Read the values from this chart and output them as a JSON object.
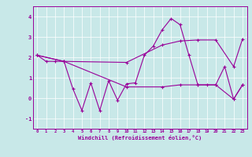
{
  "xlabel": "Windchill (Refroidissement éolien,°C)",
  "bg_color": "#c8e8e8",
  "line_color": "#990099",
  "grid_color": "#ffffff",
  "xlim": [
    -0.5,
    23.5
  ],
  "ylim": [
    -1.5,
    4.5
  ],
  "xticks": [
    0,
    1,
    2,
    3,
    4,
    5,
    6,
    7,
    8,
    9,
    10,
    11,
    12,
    13,
    14,
    15,
    16,
    17,
    18,
    19,
    20,
    21,
    22,
    23
  ],
  "yticks": [
    -1,
    0,
    1,
    2,
    3,
    4
  ],
  "line1_x": [
    0,
    1,
    2,
    3,
    4,
    5,
    6,
    7,
    8,
    9,
    10,
    11,
    12,
    13,
    14,
    15,
    16,
    17,
    18,
    19,
    20,
    21,
    22,
    23
  ],
  "line1_y": [
    2.1,
    1.8,
    1.8,
    1.8,
    0.45,
    -0.6,
    0.75,
    -0.6,
    0.85,
    -0.1,
    0.7,
    0.75,
    2.1,
    2.55,
    3.35,
    3.9,
    3.6,
    2.1,
    0.65,
    0.65,
    0.65,
    1.55,
    -0.05,
    0.65
  ],
  "line2_x": [
    0,
    3,
    10,
    14,
    16,
    18,
    20,
    22,
    23
  ],
  "line2_y": [
    2.1,
    1.8,
    1.75,
    2.6,
    2.8,
    2.85,
    2.85,
    1.55,
    2.9
  ],
  "line3_x": [
    0,
    3,
    10,
    14,
    16,
    18,
    20,
    22,
    23
  ],
  "line3_y": [
    2.1,
    1.8,
    0.55,
    0.55,
    0.65,
    0.65,
    0.65,
    -0.05,
    0.65
  ]
}
